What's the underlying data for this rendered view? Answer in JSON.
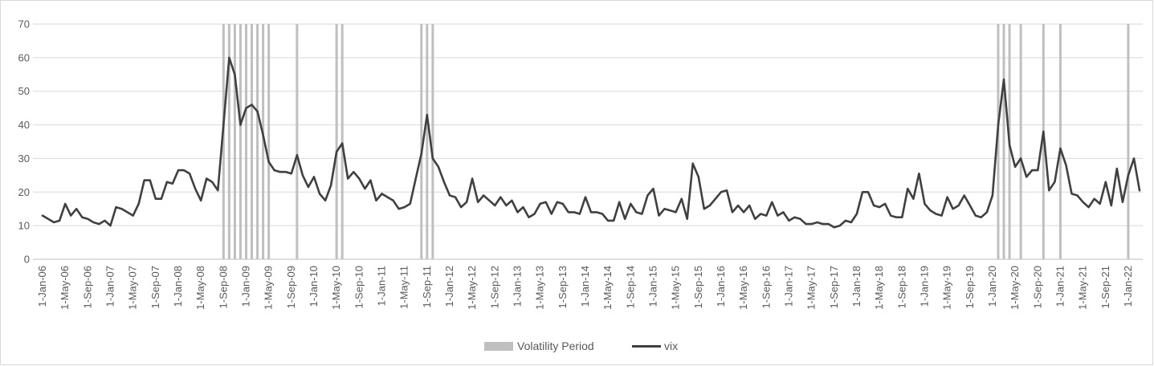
{
  "chart_data": {
    "type": "line",
    "title": "",
    "xlabel": "",
    "ylabel": "",
    "ylim": [
      0,
      70
    ],
    "yticks": [
      0,
      10,
      20,
      30,
      40,
      50,
      60,
      70
    ],
    "grid": "horizontal",
    "legend_position": "bottom",
    "x_tick_labels": [
      "1-Jan-06",
      "1-May-06",
      "1-Sep-06",
      "1-Jan-07",
      "1-May-07",
      "1-Sep-07",
      "1-Jan-08",
      "1-May-08",
      "1-Sep-08",
      "1-Jan-09",
      "1-May-09",
      "1-Sep-09",
      "1-Jan-10",
      "1-May-10",
      "1-Sep-10",
      "1-Jan-11",
      "1-May-11",
      "1-Sep-11",
      "1-Jan-12",
      "1-May-12",
      "1-Sep-12",
      "1-Jan-13",
      "1-May-13",
      "1-Sep-13",
      "1-Jan-14",
      "1-May-14",
      "1-Sep-14",
      "1-Jan-15",
      "1-May-15",
      "1-Sep-15",
      "1-Jan-16",
      "1-May-16",
      "1-Sep-16",
      "1-Jan-17",
      "1-May-17",
      "1-Sep-17",
      "1-Jan-18",
      "1-May-18",
      "1-Sep-18",
      "1-Jan-19",
      "1-May-19",
      "1-Sep-19",
      "1-Jan-20",
      "1-May-20",
      "1-Sep-20",
      "1-Jan-21",
      "1-May-21",
      "1-Sep-21",
      "1-Jan-22"
    ],
    "series": [
      {
        "name": "vix",
        "color": "#404040",
        "start": "2006-01",
        "frequency": "monthly",
        "values": [
          13,
          12,
          11,
          11.5,
          16.5,
          13,
          15,
          12.5,
          12,
          11,
          10.5,
          11.5,
          10,
          15.5,
          15,
          14,
          13,
          16.5,
          23.5,
          23.5,
          18,
          18,
          23,
          22.5,
          26.5,
          26.5,
          25.5,
          21,
          17.5,
          24,
          23,
          20.5,
          40,
          60,
          55,
          40,
          45,
          46,
          44,
          37,
          29,
          26.5,
          26,
          26,
          25.5,
          31,
          25,
          21.5,
          24.5,
          19.5,
          17.5,
          22,
          32,
          34.5,
          24,
          26,
          24,
          21,
          23.5,
          17.5,
          19.5,
          18.5,
          17.5,
          15,
          15.5,
          16.5,
          24,
          31.5,
          43,
          30,
          27.5,
          23,
          19,
          18.5,
          15.5,
          17,
          24,
          17,
          19,
          17.5,
          16,
          18.5,
          16,
          17.5,
          14,
          15.5,
          12.5,
          13.5,
          16.5,
          17,
          13.5,
          17,
          16.5,
          14,
          14,
          13.5,
          18.5,
          14,
          14,
          13.5,
          11.5,
          11.5,
          17,
          12,
          16.5,
          14,
          13.5,
          19,
          21,
          13,
          15,
          14.5,
          14,
          18,
          12,
          28.5,
          24.5,
          15,
          16,
          18,
          20,
          20.5,
          14,
          16,
          14,
          16,
          12,
          13.5,
          13,
          17,
          13,
          14,
          11.5,
          12.5,
          12,
          10.5,
          10.5,
          11,
          10.5,
          10.5,
          9.5,
          10,
          11.5,
          11,
          13.5,
          20,
          20,
          16,
          15.5,
          16.5,
          13,
          12.5,
          12.5,
          21,
          18,
          25.5,
          16.5,
          14.5,
          13.5,
          13,
          18.5,
          15,
          16,
          19,
          16,
          13,
          12.5,
          14,
          19,
          40,
          53.5,
          34,
          27.5,
          30,
          24.5,
          26.5,
          26.5,
          38,
          20.5,
          23,
          33,
          28,
          19.5,
          19,
          17,
          15.5,
          18,
          16.5,
          23,
          16,
          27,
          17,
          25,
          30,
          20.5
        ]
      }
    ],
    "volatility_periods": {
      "name": "Volatility Period",
      "color": "#bfbfbf",
      "dates": [
        "2008-09",
        "2008-10",
        "2008-11",
        "2008-12",
        "2009-01",
        "2009-02",
        "2009-03",
        "2009-04",
        "2009-05",
        "2009-10",
        "2010-05",
        "2010-06",
        "2011-08",
        "2011-09",
        "2011-10",
        "2020-02",
        "2020-03",
        "2020-04",
        "2020-06",
        "2020-10",
        "2021-01",
        "2022-01"
      ]
    },
    "legend": [
      "Volatility Period",
      "vix"
    ]
  }
}
